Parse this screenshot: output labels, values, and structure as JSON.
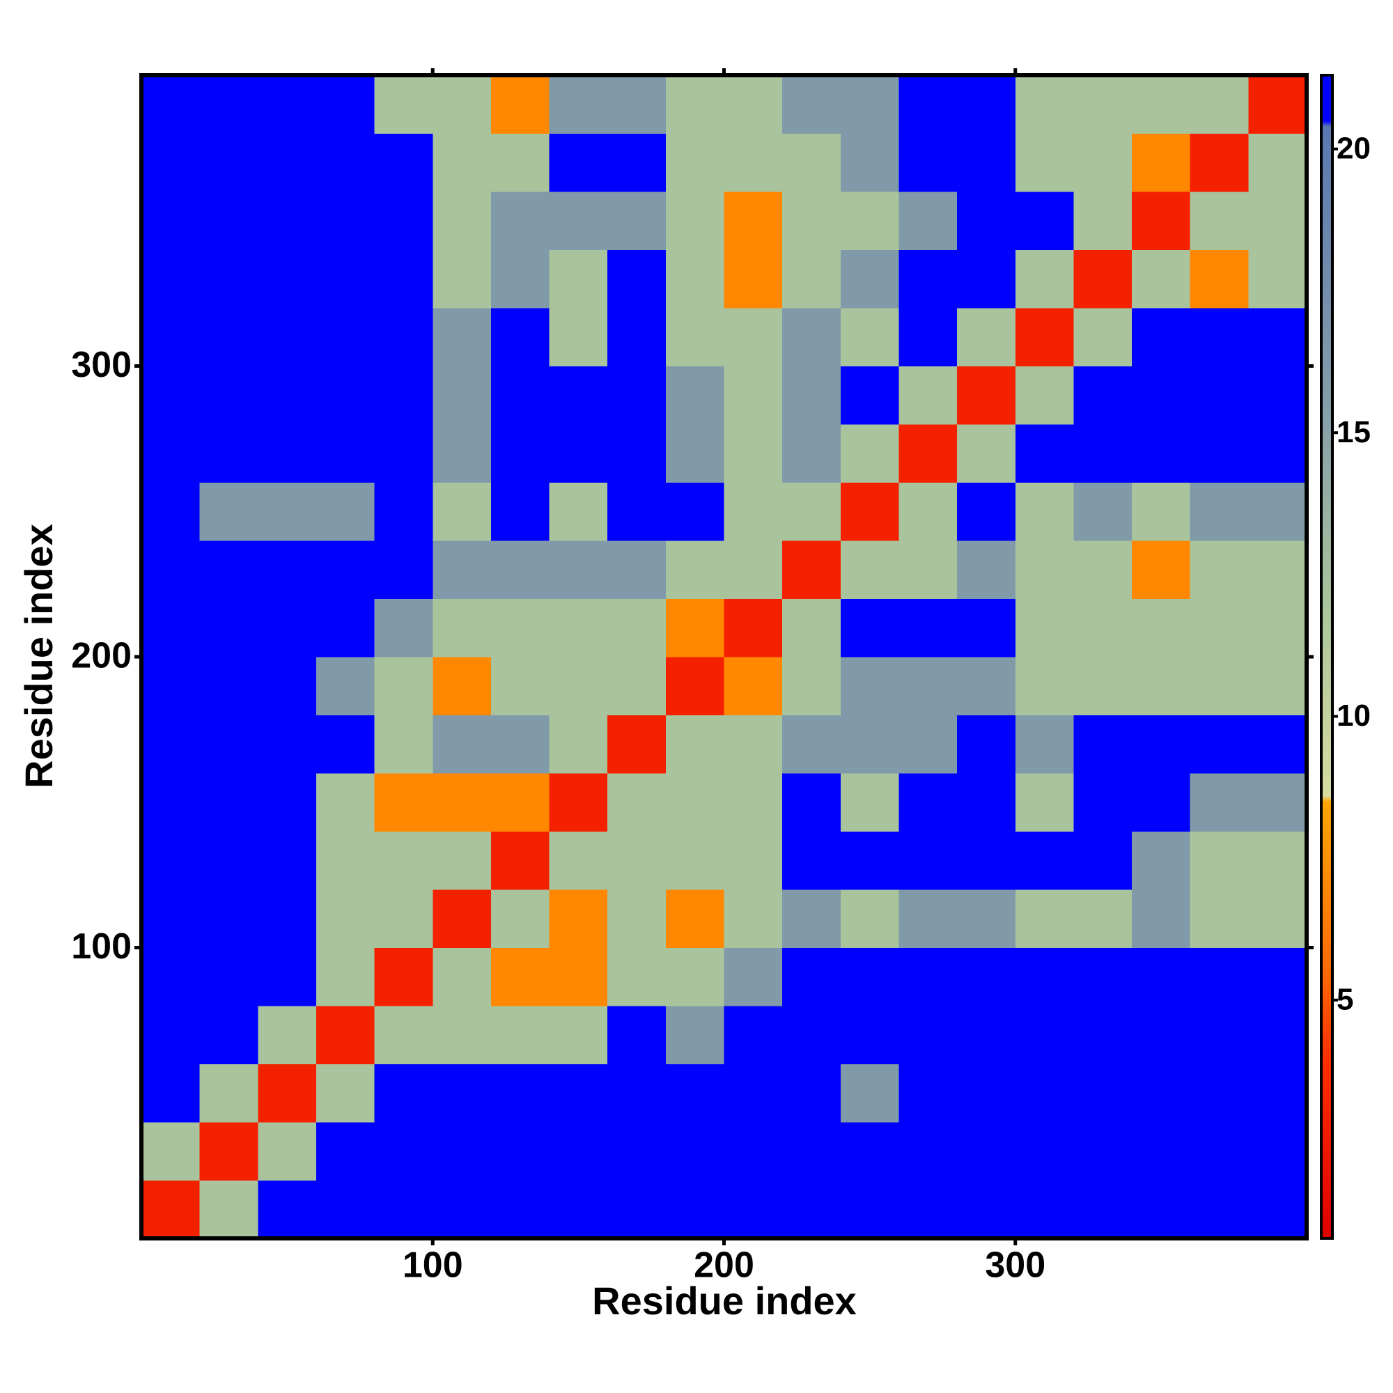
{
  "chart_data": {
    "type": "heatmap",
    "x_label": "Residue index",
    "y_label": "Residue index",
    "x": [
      10,
      30,
      50,
      70,
      90,
      110,
      130,
      150,
      170,
      190,
      210,
      230,
      250,
      270,
      290,
      310,
      330,
      350,
      370,
      390
    ],
    "y": [
      10,
      30,
      50,
      70,
      90,
      110,
      130,
      150,
      170,
      190,
      210,
      230,
      250,
      270,
      290,
      310,
      330,
      350,
      370,
      390
    ],
    "z": [
      [
        3,
        12,
        21,
        21,
        21,
        21,
        21,
        21,
        21,
        21,
        21,
        21,
        21,
        21,
        21,
        21,
        21,
        21,
        21,
        21
      ],
      [
        12,
        3,
        12,
        21,
        21,
        21,
        21,
        21,
        21,
        21,
        21,
        21,
        21,
        21,
        21,
        21,
        21,
        21,
        21,
        21
      ],
      [
        21,
        12,
        3,
        12,
        21,
        21,
        21,
        21,
        21,
        21,
        21,
        21,
        16,
        21,
        21,
        21,
        21,
        21,
        21,
        21
      ],
      [
        21,
        21,
        12,
        3,
        12,
        12,
        12,
        12,
        21,
        16,
        21,
        21,
        21,
        21,
        21,
        21,
        21,
        21,
        21,
        21
      ],
      [
        21,
        21,
        21,
        12,
        3,
        12,
        7,
        7,
        12,
        12,
        16,
        21,
        21,
        21,
        21,
        21,
        21,
        21,
        21,
        21
      ],
      [
        21,
        21,
        21,
        12,
        12,
        3,
        12,
        7,
        12,
        7,
        12,
        16,
        12,
        16,
        16,
        12,
        12,
        16,
        12,
        12
      ],
      [
        21,
        21,
        21,
        12,
        12,
        12,
        3,
        12,
        12,
        12,
        12,
        21,
        21,
        21,
        21,
        21,
        21,
        16,
        12,
        12
      ],
      [
        21,
        21,
        21,
        12,
        7,
        7,
        7,
        3,
        12,
        12,
        12,
        21,
        12,
        21,
        21,
        12,
        21,
        21,
        16,
        16
      ],
      [
        21,
        21,
        21,
        21,
        12,
        16,
        16,
        12,
        3,
        12,
        12,
        16,
        16,
        16,
        21,
        16,
        21,
        21,
        21,
        21
      ],
      [
        21,
        21,
        21,
        16,
        12,
        7,
        12,
        12,
        12,
        3,
        7,
        12,
        16,
        16,
        16,
        12,
        12,
        12,
        12,
        12
      ],
      [
        21,
        21,
        21,
        21,
        16,
        12,
        12,
        12,
        12,
        7,
        3,
        12,
        21,
        21,
        21,
        12,
        12,
        12,
        12,
        12
      ],
      [
        21,
        21,
        21,
        21,
        21,
        16,
        16,
        16,
        16,
        12,
        12,
        3,
        12,
        12,
        16,
        12,
        12,
        7,
        12,
        12
      ],
      [
        21,
        16,
        16,
        16,
        21,
        12,
        21,
        12,
        21,
        21,
        12,
        12,
        3,
        12,
        21,
        12,
        16,
        12,
        16,
        16
      ],
      [
        21,
        21,
        21,
        21,
        21,
        16,
        21,
        21,
        21,
        16,
        12,
        16,
        12,
        3,
        12,
        21,
        21,
        21,
        21,
        21
      ],
      [
        21,
        21,
        21,
        21,
        21,
        16,
        21,
        21,
        21,
        16,
        12,
        16,
        21,
        12,
        3,
        12,
        21,
        21,
        21,
        21
      ],
      [
        21,
        21,
        21,
        21,
        21,
        16,
        21,
        12,
        21,
        12,
        12,
        16,
        12,
        21,
        12,
        3,
        12,
        21,
        21,
        21
      ],
      [
        21,
        21,
        21,
        21,
        21,
        12,
        16,
        12,
        21,
        12,
        7,
        12,
        16,
        21,
        21,
        12,
        3,
        12,
        7,
        12
      ],
      [
        21,
        21,
        21,
        21,
        21,
        12,
        16,
        16,
        16,
        12,
        7,
        12,
        12,
        16,
        21,
        21,
        12,
        3,
        12,
        12
      ],
      [
        21,
        21,
        21,
        21,
        21,
        12,
        12,
        21,
        21,
        12,
        12,
        12,
        16,
        21,
        21,
        12,
        12,
        7,
        3,
        12
      ],
      [
        21,
        21,
        21,
        21,
        12,
        12,
        7,
        16,
        16,
        12,
        12,
        16,
        16,
        21,
        21,
        12,
        12,
        12,
        12,
        3
      ]
    ],
    "xlim": [
      0,
      400
    ],
    "ylim": [
      0,
      400
    ],
    "xticks": [
      100,
      200,
      300
    ],
    "yticks": [
      100,
      200,
      300
    ],
    "clim": [
      0.8,
      21.3
    ],
    "cticks": [
      5,
      10,
      15,
      20
    ],
    "colorscale": [
      {
        "value": 0.8,
        "color": "#dd0000"
      },
      {
        "value": 4,
        "color": "#ff3000"
      },
      {
        "value": 5.5,
        "color": "#ff6a00"
      },
      {
        "value": 8.5,
        "color": "#ffa500"
      },
      {
        "value": 8.6,
        "color": "#d8dca0"
      },
      {
        "value": 12,
        "color": "#a9c49c"
      },
      {
        "value": 15,
        "color": "#8aa2a8"
      },
      {
        "value": 20.4,
        "color": "#5a78b0"
      },
      {
        "value": 20.5,
        "color": "#0000ff"
      },
      {
        "value": 21.3,
        "color": "#0000ff"
      }
    ]
  }
}
